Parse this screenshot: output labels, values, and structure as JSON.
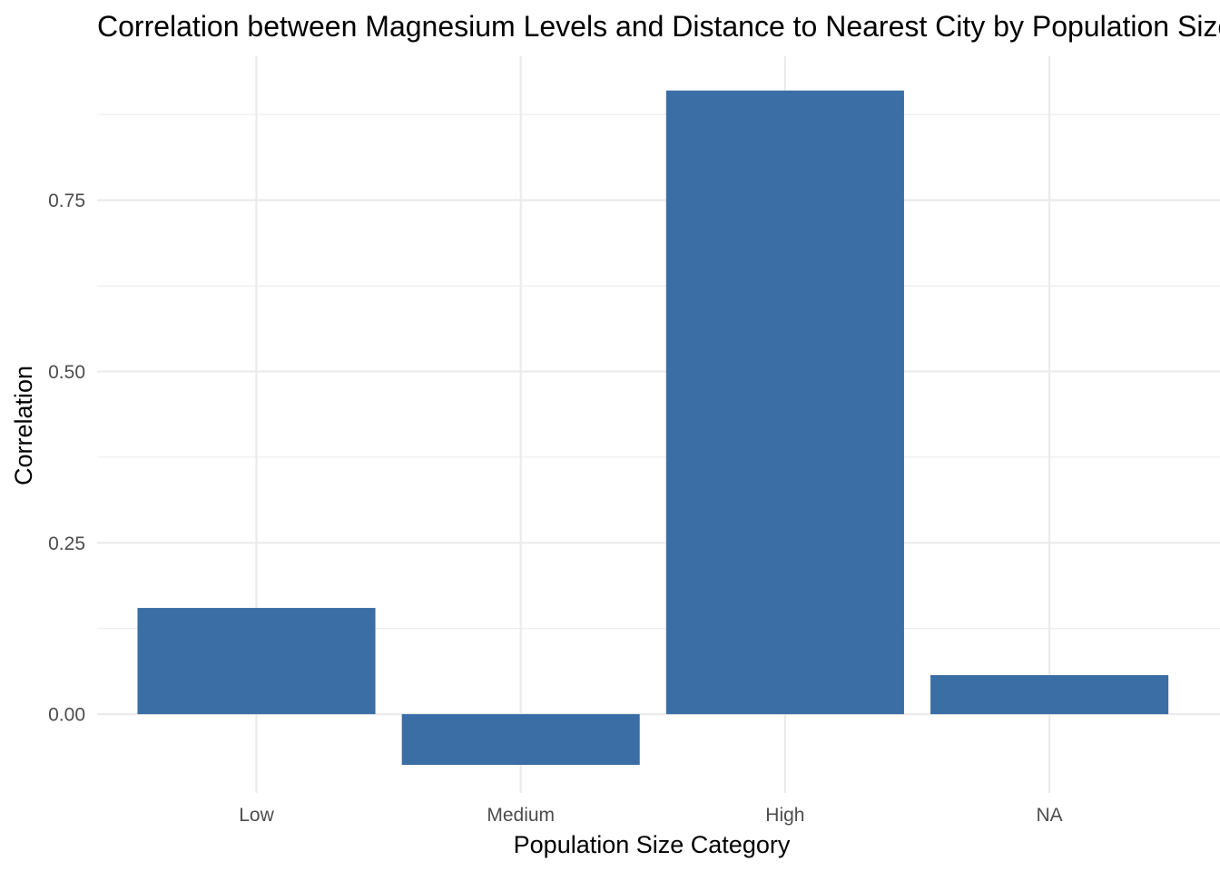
{
  "chart_data": {
    "type": "bar",
    "title": "Correlation between Magnesium Levels and Distance to Nearest City by Population Size",
    "xlabel": "Population Size Category",
    "ylabel": "Correlation",
    "categories": [
      "Low",
      "Medium",
      "High",
      "NA"
    ],
    "values": [
      0.155,
      -0.074,
      0.91,
      0.057
    ],
    "ylim": [
      -0.115,
      0.96
    ],
    "yticks": [
      0.0,
      0.25,
      0.5,
      0.75
    ],
    "ytick_labels": [
      "0.00",
      "0.25",
      "0.50",
      "0.75"
    ],
    "bar_color": "#3a6ea5",
    "grid": true,
    "legend": "none"
  }
}
